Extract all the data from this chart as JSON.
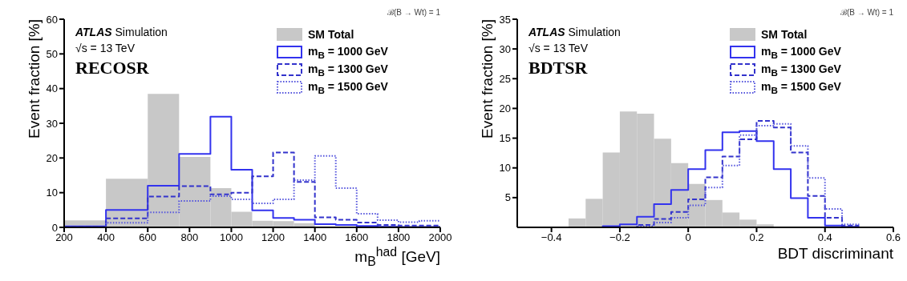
{
  "chart_data": [
    {
      "type": "histogram",
      "xlabel": "m$_{B}$$^{had}$ [GeV]",
      "ylabel": "Event fraction [%]",
      "annotations": [
        "ATLAS Simulation",
        "√s = 13 TeV",
        "RECOSR",
        "ℬ(B → Wt) = 1"
      ],
      "bins": [
        200,
        400,
        600,
        750,
        900,
        1000,
        1100,
        1200,
        1300,
        1400
      ],
      "series": [
        {
          "name": "SM Total",
          "color": "#c8c8c8",
          "values": [
            2.0,
            14.0,
            38.5,
            20.3,
            11.3,
            4.5,
            1.9,
            1.8,
            1.2
          ]
        },
        {
          "name": "m$_{B}$ = 1000 GeV",
          "type": "step",
          "line_style": "solid",
          "color": "#3333ee",
          "x": [
            200,
            400,
            600,
            750,
            900,
            1000,
            1100,
            1200,
            1300,
            1400,
            1500,
            1600,
            1700,
            1800,
            1900,
            2000
          ],
          "values": [
            0.3,
            5.0,
            12.0,
            21.2,
            31.9,
            16.6,
            4.9,
            2.7,
            2.2,
            0.9,
            0.7,
            0.4,
            0.2,
            0.1,
            0.1,
            0.1
          ]
        },
        {
          "name": "m$_{B}$ = 1300 GeV",
          "type": "step",
          "line_style": "dashed",
          "color": "#3333cc",
          "x": [
            200,
            400,
            600,
            750,
            900,
            1000,
            1100,
            1200,
            1300,
            1400,
            1500,
            1600,
            1700,
            1800,
            1900,
            2000
          ],
          "values": [
            0.1,
            2.6,
            8.9,
            11.9,
            9.5,
            10.0,
            14.7,
            21.6,
            13.1,
            2.9,
            2.2,
            1.4,
            0.7,
            0.5,
            0.5,
            0.5
          ]
        },
        {
          "name": "m$_{B}$ = 1500 GeV",
          "type": "step",
          "line_style": "dotted",
          "color": "#5555dd",
          "x": [
            200,
            400,
            600,
            750,
            900,
            1000,
            1100,
            1200,
            1300,
            1400,
            1500,
            1600,
            1700,
            1800,
            1900,
            2000
          ],
          "values": [
            0,
            1.3,
            4.3,
            7.6,
            9.0,
            8.1,
            6.9,
            8.1,
            13.6,
            20.6,
            11.3,
            3.9,
            2.1,
            1.5,
            1.9,
            1.9
          ]
        }
      ],
      "xlim": [
        200,
        2000
      ],
      "xticks": [
        200,
        400,
        600,
        800,
        1000,
        1200,
        1400,
        1600,
        1800,
        2000
      ],
      "ylim": [
        0,
        60
      ],
      "yticks": [
        0,
        10,
        20,
        30,
        40,
        50,
        60
      ],
      "legend": "top right"
    },
    {
      "type": "histogram",
      "xlabel": "BDT discriminant",
      "ylabel": "Event fraction [%]",
      "annotations": [
        "ATLAS Simulation",
        "√s = 13 TeV",
        "BDTSR",
        "ℬ(B → Wt) = 1"
      ],
      "bins": [
        -0.35,
        -0.3,
        -0.25,
        -0.2,
        -0.15,
        -0.1,
        -0.05,
        0,
        0.05,
        0.1,
        0.15,
        0.2,
        0.25,
        0.3
      ],
      "series": [
        {
          "name": "SM Total",
          "color": "#c8c8c8",
          "values": [
            1.5,
            4.8,
            12.6,
            19.5,
            19.1,
            14.9,
            10.8,
            7.3,
            4.6,
            2.5,
            1.3,
            0.5,
            0.1
          ]
        },
        {
          "name": "m$_{B}$ = 1000 GeV",
          "type": "step",
          "line_style": "solid",
          "color": "#3333ee",
          "x": [
            -0.35,
            -0.3,
            -0.25,
            -0.2,
            -0.15,
            -0.1,
            -0.05,
            0,
            0.05,
            0.1,
            0.15,
            0.2,
            0.25,
            0.3,
            0.35,
            0.4,
            0.45,
            0.5
          ],
          "values": [
            0,
            0,
            0.2,
            0.5,
            1.8,
            3.9,
            6.3,
            9.8,
            13.0,
            16.0,
            16.2,
            14.5,
            9.8,
            4.9,
            1.6,
            0.3,
            0.1,
            0.1
          ]
        },
        {
          "name": "m$_{B}$ = 1300 GeV",
          "type": "step",
          "line_style": "dashed",
          "color": "#3333cc",
          "x": [
            -0.35,
            -0.3,
            -0.25,
            -0.2,
            -0.15,
            -0.1,
            -0.05,
            0,
            0.05,
            0.1,
            0.15,
            0.2,
            0.25,
            0.3,
            0.35,
            0.4,
            0.45,
            0.5
          ],
          "values": [
            0,
            0,
            0,
            0,
            0.4,
            1.4,
            2.6,
            4.7,
            8.4,
            11.9,
            14.8,
            17.9,
            16.8,
            12.6,
            5.3,
            1.6,
            0.3,
            0.3
          ]
        },
        {
          "name": "m$_{B}$ = 1500 GeV",
          "type": "step",
          "line_style": "dotted",
          "color": "#5555dd",
          "x": [
            -0.35,
            -0.3,
            -0.25,
            -0.2,
            -0.15,
            -0.1,
            -0.05,
            0,
            0.05,
            0.1,
            0.15,
            0.2,
            0.25,
            0.3,
            0.35,
            0.4,
            0.45,
            0.5
          ],
          "values": [
            0,
            0,
            0,
            0,
            0.2,
            0.8,
            1.6,
            3.7,
            6.7,
            10.4,
            15.5,
            17.1,
            17.4,
            13.7,
            8.3,
            3.1,
            0.5,
            0.5
          ]
        }
      ],
      "xlim": [
        -0.5,
        0.6
      ],
      "xticks": [
        {
          "value": -0.4,
          "label": "−0.4"
        },
        {
          "value": -0.2,
          "label": "−0.2"
        },
        0,
        0.2,
        0.4,
        0.6
      ],
      "ylim": [
        0,
        35
      ],
      "yticks": [
        5,
        10,
        15,
        20,
        25,
        30,
        35
      ],
      "legend": "top right"
    }
  ]
}
